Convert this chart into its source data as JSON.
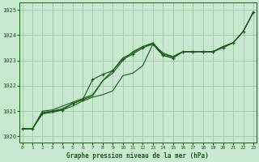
{
  "title": "Graphe pression niveau de la mer (hPa)",
  "bg_color": "#c8e8d0",
  "grid_color": "#a0c8a8",
  "line_color": "#1a5c1a",
  "text_color": "#1a5c1a",
  "xlim": [
    -0.3,
    23.3
  ],
  "ylim": [
    1019.75,
    1025.3
  ],
  "yticks": [
    1020,
    1021,
    1022,
    1023,
    1024,
    1025
  ],
  "xticks": [
    0,
    1,
    2,
    3,
    4,
    5,
    6,
    7,
    8,
    9,
    10,
    11,
    12,
    13,
    14,
    15,
    16,
    17,
    18,
    19,
    20,
    21,
    22,
    23
  ],
  "series_with_markers": [
    1020.3,
    1020.3,
    1020.9,
    1021.0,
    1021.05,
    1021.3,
    1021.45,
    1022.25,
    1022.45,
    1022.6,
    1023.05,
    1023.25,
    1023.5,
    1023.65,
    1023.2,
    1023.1,
    1023.35,
    1023.35,
    1023.35,
    1023.35,
    1023.5,
    1023.7,
    1024.15,
    1024.9
  ],
  "series_diverge_high": [
    1020.3,
    1020.3,
    1020.95,
    1021.0,
    1021.1,
    1021.3,
    1021.45,
    1021.6,
    1022.2,
    1022.5,
    1023.0,
    1023.35,
    1023.55,
    1023.65,
    1023.3,
    1023.15,
    1023.35,
    1023.35,
    1023.35,
    1023.35,
    1023.55,
    1023.7,
    1024.15,
    1024.9
  ],
  "series_middle": [
    1020.3,
    1020.3,
    1021.0,
    1021.05,
    1021.2,
    1021.35,
    1021.5,
    1021.65,
    1022.2,
    1022.6,
    1023.1,
    1023.3,
    1023.55,
    1023.7,
    1023.25,
    1023.15,
    1023.35,
    1023.35,
    1023.35,
    1023.35,
    1023.55,
    1023.7,
    1024.15,
    1024.9
  ],
  "series_top": [
    1020.3,
    1020.3,
    1020.9,
    1020.95,
    1021.05,
    1021.2,
    1021.4,
    1021.55,
    1021.65,
    1021.8,
    1022.4,
    1022.5,
    1022.8,
    1023.65,
    1023.2,
    1023.1,
    1023.35,
    1023.35,
    1023.35,
    1023.35,
    1023.55,
    1023.7,
    1024.15,
    1024.9
  ]
}
